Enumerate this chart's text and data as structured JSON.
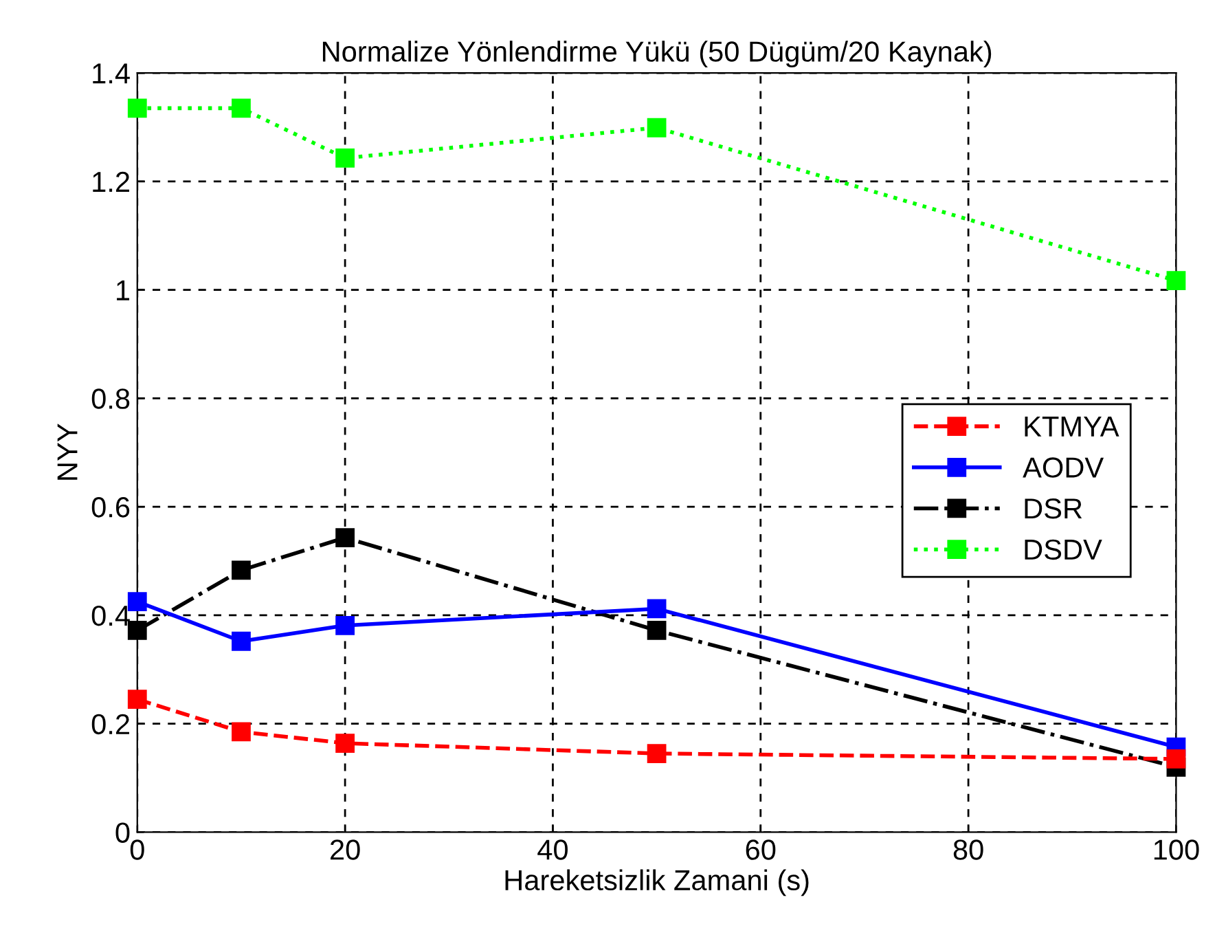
{
  "chart_data": {
    "type": "line",
    "title": "Normalize Yönlendirme Yükü (50 Dügüm/20 Kaynak)",
    "xlabel": "Hareketsizlik Zamani (s)",
    "ylabel": "NYY",
    "x": [
      0,
      10,
      20,
      50,
      100
    ],
    "series": [
      {
        "name": "KTMYA",
        "color": "#ff0000",
        "line_style": "dashed",
        "values": [
          0.245,
          0.185,
          0.164,
          0.145,
          0.135
        ]
      },
      {
        "name": "AODV",
        "color": "#0000ff",
        "line_style": "solid",
        "values": [
          0.425,
          0.352,
          0.381,
          0.412,
          0.157
        ]
      },
      {
        "name": "DSR",
        "color": "#000000",
        "line_style": "dashdot",
        "values": [
          0.372,
          0.483,
          0.543,
          0.372,
          0.12
        ]
      },
      {
        "name": "DSDV",
        "color": "#00ff00",
        "line_style": "dotted",
        "values": [
          1.335,
          1.335,
          1.243,
          1.299,
          1.017
        ]
      }
    ],
    "marker": "square",
    "xlim": [
      0,
      100
    ],
    "ylim": [
      0,
      1.4
    ],
    "xticks": [
      0,
      20,
      40,
      60,
      80,
      100
    ],
    "yticks": [
      0,
      0.2,
      0.4,
      0.6,
      0.8,
      1,
      1.2,
      1.4
    ],
    "grid": true,
    "legend": "right"
  }
}
